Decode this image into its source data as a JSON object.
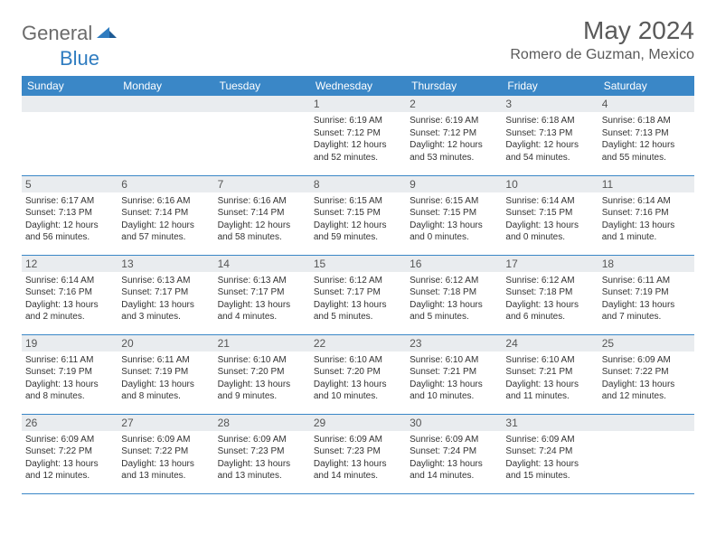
{
  "logo": {
    "text1": "General",
    "text2": "Blue"
  },
  "title": "May 2024",
  "location": "Romero de Guzman, Mexico",
  "colors": {
    "header_bg": "#3a87c7",
    "header_fg": "#ffffff",
    "daynum_bg": "#e9ecef",
    "daynum_fg": "#555555",
    "border": "#3a87c7",
    "logo_gray": "#6b6b6b",
    "logo_blue": "#2f7cc0",
    "title_fg": "#5a5a5a"
  },
  "weekdays": [
    "Sunday",
    "Monday",
    "Tuesday",
    "Wednesday",
    "Thursday",
    "Friday",
    "Saturday"
  ],
  "weeks": [
    [
      null,
      null,
      null,
      {
        "n": "1",
        "sr": "6:19 AM",
        "ss": "7:12 PM",
        "dl": "12 hours and 52 minutes."
      },
      {
        "n": "2",
        "sr": "6:19 AM",
        "ss": "7:12 PM",
        "dl": "12 hours and 53 minutes."
      },
      {
        "n": "3",
        "sr": "6:18 AM",
        "ss": "7:13 PM",
        "dl": "12 hours and 54 minutes."
      },
      {
        "n": "4",
        "sr": "6:18 AM",
        "ss": "7:13 PM",
        "dl": "12 hours and 55 minutes."
      }
    ],
    [
      {
        "n": "5",
        "sr": "6:17 AM",
        "ss": "7:13 PM",
        "dl": "12 hours and 56 minutes."
      },
      {
        "n": "6",
        "sr": "6:16 AM",
        "ss": "7:14 PM",
        "dl": "12 hours and 57 minutes."
      },
      {
        "n": "7",
        "sr": "6:16 AM",
        "ss": "7:14 PM",
        "dl": "12 hours and 58 minutes."
      },
      {
        "n": "8",
        "sr": "6:15 AM",
        "ss": "7:15 PM",
        "dl": "12 hours and 59 minutes."
      },
      {
        "n": "9",
        "sr": "6:15 AM",
        "ss": "7:15 PM",
        "dl": "13 hours and 0 minutes."
      },
      {
        "n": "10",
        "sr": "6:14 AM",
        "ss": "7:15 PM",
        "dl": "13 hours and 0 minutes."
      },
      {
        "n": "11",
        "sr": "6:14 AM",
        "ss": "7:16 PM",
        "dl": "13 hours and 1 minute."
      }
    ],
    [
      {
        "n": "12",
        "sr": "6:14 AM",
        "ss": "7:16 PM",
        "dl": "13 hours and 2 minutes."
      },
      {
        "n": "13",
        "sr": "6:13 AM",
        "ss": "7:17 PM",
        "dl": "13 hours and 3 minutes."
      },
      {
        "n": "14",
        "sr": "6:13 AM",
        "ss": "7:17 PM",
        "dl": "13 hours and 4 minutes."
      },
      {
        "n": "15",
        "sr": "6:12 AM",
        "ss": "7:17 PM",
        "dl": "13 hours and 5 minutes."
      },
      {
        "n": "16",
        "sr": "6:12 AM",
        "ss": "7:18 PM",
        "dl": "13 hours and 5 minutes."
      },
      {
        "n": "17",
        "sr": "6:12 AM",
        "ss": "7:18 PM",
        "dl": "13 hours and 6 minutes."
      },
      {
        "n": "18",
        "sr": "6:11 AM",
        "ss": "7:19 PM",
        "dl": "13 hours and 7 minutes."
      }
    ],
    [
      {
        "n": "19",
        "sr": "6:11 AM",
        "ss": "7:19 PM",
        "dl": "13 hours and 8 minutes."
      },
      {
        "n": "20",
        "sr": "6:11 AM",
        "ss": "7:19 PM",
        "dl": "13 hours and 8 minutes."
      },
      {
        "n": "21",
        "sr": "6:10 AM",
        "ss": "7:20 PM",
        "dl": "13 hours and 9 minutes."
      },
      {
        "n": "22",
        "sr": "6:10 AM",
        "ss": "7:20 PM",
        "dl": "13 hours and 10 minutes."
      },
      {
        "n": "23",
        "sr": "6:10 AM",
        "ss": "7:21 PM",
        "dl": "13 hours and 10 minutes."
      },
      {
        "n": "24",
        "sr": "6:10 AM",
        "ss": "7:21 PM",
        "dl": "13 hours and 11 minutes."
      },
      {
        "n": "25",
        "sr": "6:09 AM",
        "ss": "7:22 PM",
        "dl": "13 hours and 12 minutes."
      }
    ],
    [
      {
        "n": "26",
        "sr": "6:09 AM",
        "ss": "7:22 PM",
        "dl": "13 hours and 12 minutes."
      },
      {
        "n": "27",
        "sr": "6:09 AM",
        "ss": "7:22 PM",
        "dl": "13 hours and 13 minutes."
      },
      {
        "n": "28",
        "sr": "6:09 AM",
        "ss": "7:23 PM",
        "dl": "13 hours and 13 minutes."
      },
      {
        "n": "29",
        "sr": "6:09 AM",
        "ss": "7:23 PM",
        "dl": "13 hours and 14 minutes."
      },
      {
        "n": "30",
        "sr": "6:09 AM",
        "ss": "7:24 PM",
        "dl": "13 hours and 14 minutes."
      },
      {
        "n": "31",
        "sr": "6:09 AM",
        "ss": "7:24 PM",
        "dl": "13 hours and 15 minutes."
      },
      null
    ]
  ],
  "labels": {
    "sunrise": "Sunrise:",
    "sunset": "Sunset:",
    "daylight": "Daylight:"
  }
}
